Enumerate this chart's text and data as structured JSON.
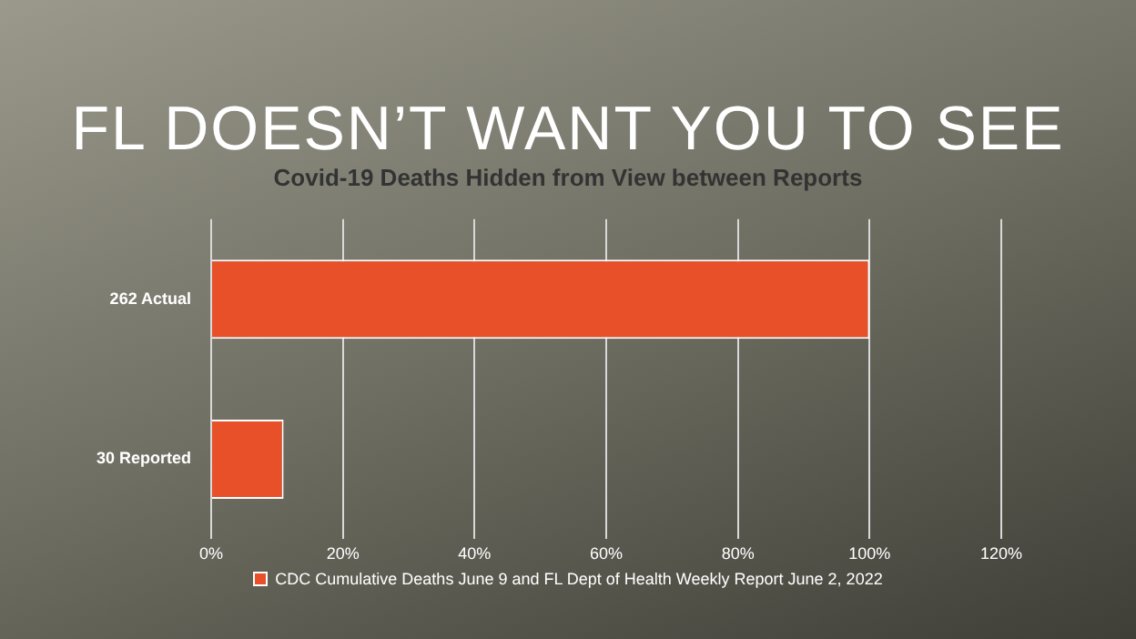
{
  "chart_data": {
    "type": "bar",
    "orientation": "horizontal",
    "title": "FL DOESN’T WANT YOU TO SEE",
    "subtitle": "Covid-19 Deaths Hidden from View between Reports",
    "categories": [
      "262 Actual",
      "30 Reported"
    ],
    "series": [
      {
        "name": "CDC Cumulative Deaths June 9 and FL Dept of Health Weekly Report June 2, 2022",
        "color": "#e8502a",
        "values": [
          100,
          11
        ]
      }
    ],
    "xlim": [
      0,
      120
    ],
    "xticks": [
      {
        "value": 0,
        "label": "0%"
      },
      {
        "value": 20,
        "label": "20%"
      },
      {
        "value": 40,
        "label": "40%"
      },
      {
        "value": 60,
        "label": "60%"
      },
      {
        "value": 80,
        "label": "80%"
      },
      {
        "value": 100,
        "label": "100%"
      },
      {
        "value": 120,
        "label": "120%"
      }
    ],
    "grid": "x",
    "legend": "bottom"
  }
}
